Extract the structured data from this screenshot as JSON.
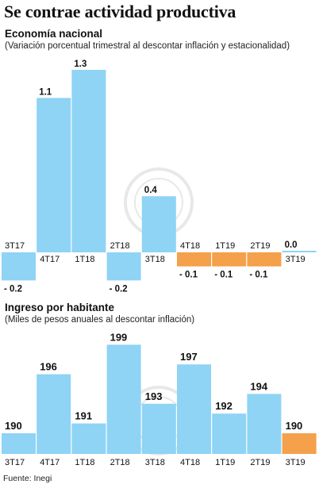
{
  "title": "Se contrae actividad productiva",
  "source": "Fuente: Inegi",
  "colors": {
    "blue": "#8fd3f5",
    "orange": "#f5a04a"
  },
  "chart_data": [
    {
      "type": "bar",
      "title": "Economía nacional",
      "subtitle": "(Variación porcentual trimestral al descontar inflación y estacionalidad)",
      "categories": [
        "3T17",
        "4T17",
        "1T18",
        "2T18",
        "3T18",
        "4T18",
        "1T19",
        "2T19",
        "3T19"
      ],
      "values": [
        -0.2,
        1.1,
        1.3,
        -0.2,
        0.4,
        -0.1,
        -0.1,
        -0.1,
        0.0
      ],
      "value_labels": [
        "- 0.2",
        "1.1",
        "1.3",
        "- 0.2",
        "0.4",
        "- 0.1",
        "- 0.1",
        "- 0.1",
        "0.0"
      ],
      "highlight": [
        false,
        false,
        false,
        false,
        false,
        true,
        true,
        true,
        false
      ],
      "ylim": [
        -0.2,
        1.3
      ],
      "grid": false
    },
    {
      "type": "bar",
      "title": "Ingreso por habitante",
      "subtitle": "(Miles de pesos anuales al descontar inflación)",
      "categories": [
        "3T17",
        "4T17",
        "1T18",
        "2T18",
        "3T18",
        "4T18",
        "1T19",
        "2T19",
        "3T19"
      ],
      "values": [
        190,
        196,
        191,
        199,
        193,
        197,
        192,
        194,
        190
      ],
      "highlight": [
        false,
        false,
        false,
        false,
        false,
        false,
        false,
        false,
        true
      ],
      "ylim": [
        187,
        199
      ],
      "grid": false
    }
  ]
}
